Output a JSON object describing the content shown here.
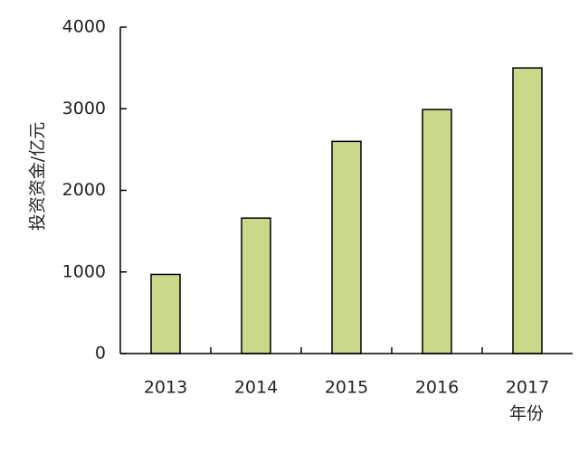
{
  "chart_data": {
    "type": "bar",
    "y_label": "投资资金/亿元",
    "x_label": "年份",
    "categories": [
      "2013",
      "2014",
      "2015",
      "2016",
      "2017"
    ],
    "values": [
      970,
      1660,
      2600,
      2990,
      3500
    ],
    "color": "#c9d98a",
    "ylim": [
      0,
      4000
    ],
    "yticks": [
      0,
      1000,
      2000,
      3000,
      4000
    ],
    "grid": false
  }
}
